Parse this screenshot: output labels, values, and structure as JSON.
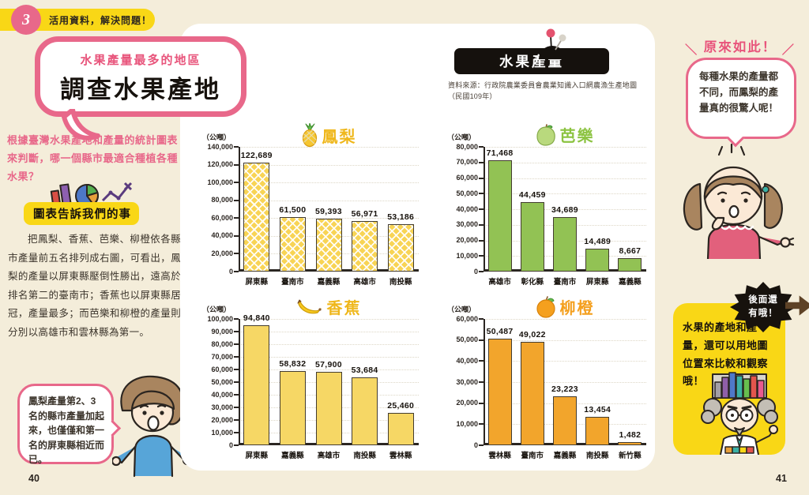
{
  "colors": {
    "page_background": "#f4edda",
    "accent_pink": "#e8688a",
    "badge_yellow": "#f9d716",
    "header_black": "#15110d",
    "pineapple_bar": "#f8d455",
    "banana_bar": "#f6d765",
    "guava_bar": "#92c254",
    "orange_bar": "#f2a52c"
  },
  "badge": {
    "number": "3",
    "label": "活用資料，解決問題！"
  },
  "title_bubble": {
    "subtitle": "水果產量最多的地區",
    "title": "調查水果產地"
  },
  "left": {
    "question": "根據臺灣水果產地和產量的統計圖表來判斷，哪一個縣市最適合種植各種水果？",
    "section_heading": "圖表告訴我們的事",
    "body": "把鳳梨、香蕉、芭樂、柳橙依各縣市產量前五名排列成右圖，可看出，鳳梨的產量以屏東縣壓倒性勝出，遠高於排名第二的臺南市；香蕉也以屏東縣居冠，產量最多；而芭樂和柳橙的產量則分別以高雄市和雲林縣為第一。",
    "boy_bubble": "鳳梨產量第2、3名的縣市產量加起來，也僅僅和第一名的屏東縣相近而已。",
    "page_number": "40"
  },
  "panel": {
    "header": "水果產量",
    "source_line1": "資料來源：行政院農業委員會農業知識入口網農漁生產地圖",
    "source_line2": "（民國109年）"
  },
  "right": {
    "slash_left": "＼",
    "exclaim": "原來如此！",
    "slash_right": "／",
    "girl_bubble": "每種水果的產量都不同，而鳳梨的產量真的很驚人呢！",
    "next_badge_line1": "後面還",
    "next_badge_line2": "有哦！",
    "note": "水果的產地和產量，還可以用地圖位置來比較和觀察哦！",
    "page_number": "41"
  },
  "icons": {
    "pineapple-icon": "pineapple fruit",
    "guava-icon": "guava fruit",
    "banana-icon": "banana fruit",
    "orange-icon": "orange fruit",
    "chart-trio-icon": "bar chart, pie chart and line chart",
    "pin-icon": "two map pins on a mound",
    "arrow-right-icon": "turn the page arrow"
  },
  "chart_data": [
    {
      "type": "bar",
      "title": "鳳梨",
      "icon": "pineapple-icon",
      "unit_label": "（公噸）",
      "categories": [
        "屏東縣",
        "臺南市",
        "嘉義縣",
        "高雄市",
        "南投縣"
      ],
      "values": [
        122689,
        61500,
        59393,
        56971,
        53186
      ],
      "value_labels": [
        "122,689",
        "61,500",
        "59,393",
        "56,971",
        "53,186"
      ],
      "ylim": [
        0,
        140000
      ],
      "ytick_step": 20000,
      "grid": true,
      "legend": "none",
      "bar_color": "#f8d455",
      "bar_pattern": "crosshatch",
      "title_color": "#efb71b"
    },
    {
      "type": "bar",
      "title": "芭樂",
      "icon": "guava-icon",
      "unit_label": "（公噸）",
      "categories": [
        "高雄市",
        "彰化縣",
        "臺南市",
        "屏東縣",
        "嘉義縣"
      ],
      "values": [
        71468,
        44459,
        34689,
        14489,
        8667
      ],
      "value_labels": [
        "71,468",
        "44,459",
        "34,689",
        "14,489",
        "8,667"
      ],
      "ylim": [
        0,
        80000
      ],
      "ytick_step": 10000,
      "grid": true,
      "legend": "none",
      "bar_color": "#92c254",
      "bar_pattern": "solid",
      "title_color": "#8cc341"
    },
    {
      "type": "bar",
      "title": "香蕉",
      "icon": "banana-icon",
      "unit_label": "（公噸）",
      "categories": [
        "屏東縣",
        "嘉義縣",
        "高雄市",
        "南投縣",
        "雲林縣"
      ],
      "values": [
        94840,
        58832,
        57900,
        53684,
        25460
      ],
      "value_labels": [
        "94,840",
        "58,832",
        "57,900",
        "53,684",
        "25,460"
      ],
      "ylim": [
        0,
        100000
      ],
      "ytick_step": 10000,
      "grid": true,
      "legend": "none",
      "bar_color": "#f6d765",
      "bar_pattern": "solid",
      "title_color": "#efb71b"
    },
    {
      "type": "bar",
      "title": "柳橙",
      "icon": "orange-icon",
      "unit_label": "（公噸）",
      "categories": [
        "雲林縣",
        "臺南市",
        "嘉義縣",
        "南投縣",
        "新竹縣"
      ],
      "values": [
        50487,
        49022,
        23223,
        13454,
        1482
      ],
      "value_labels": [
        "50,487",
        "49,022",
        "23,223",
        "13,454",
        "1,482"
      ],
      "ylim": [
        0,
        60000
      ],
      "ytick_step": 10000,
      "grid": true,
      "legend": "none",
      "bar_color": "#f2a52c",
      "bar_pattern": "solid",
      "title_color": "#f49f1d"
    }
  ]
}
